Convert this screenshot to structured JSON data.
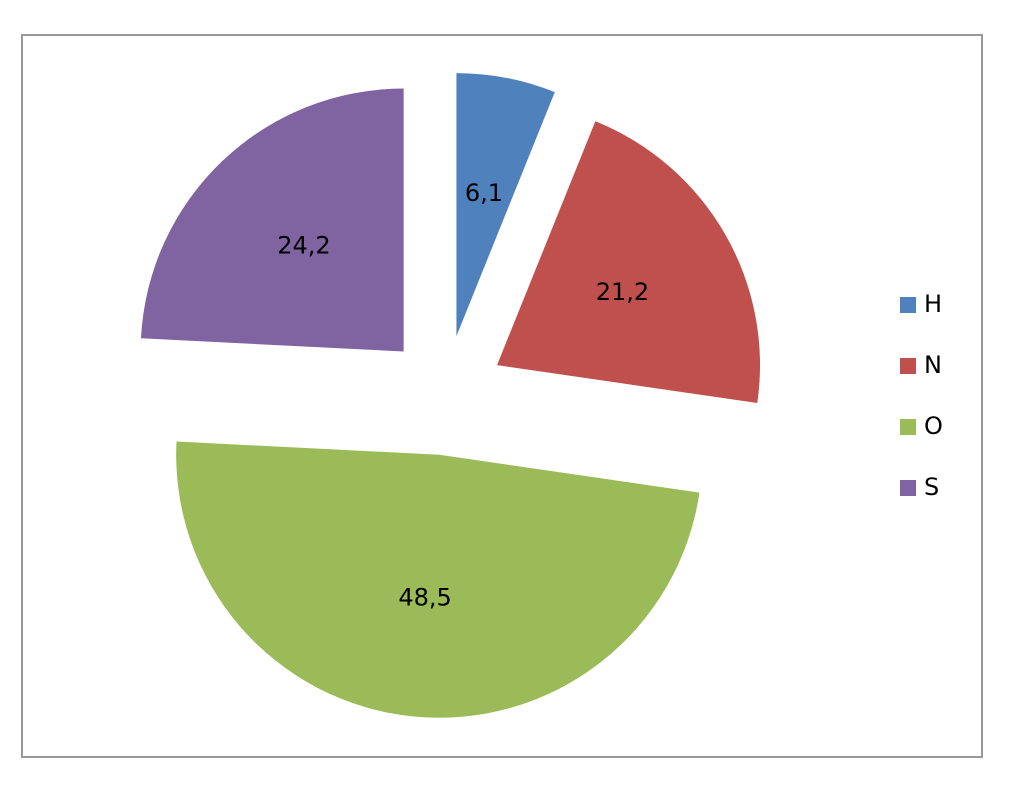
{
  "chart_data": {
    "type": "pie",
    "categories": [
      "H",
      "N",
      "O",
      "S"
    ],
    "values": [
      6.1,
      21.2,
      48.5,
      24.2
    ],
    "value_labels": [
      "6,1",
      "21,2",
      "48,5",
      "24,2"
    ],
    "colors": [
      "#4f81bd",
      "#c0504d",
      "#9bbb59",
      "#8064a2"
    ],
    "exploded": true,
    "legend": "right"
  }
}
